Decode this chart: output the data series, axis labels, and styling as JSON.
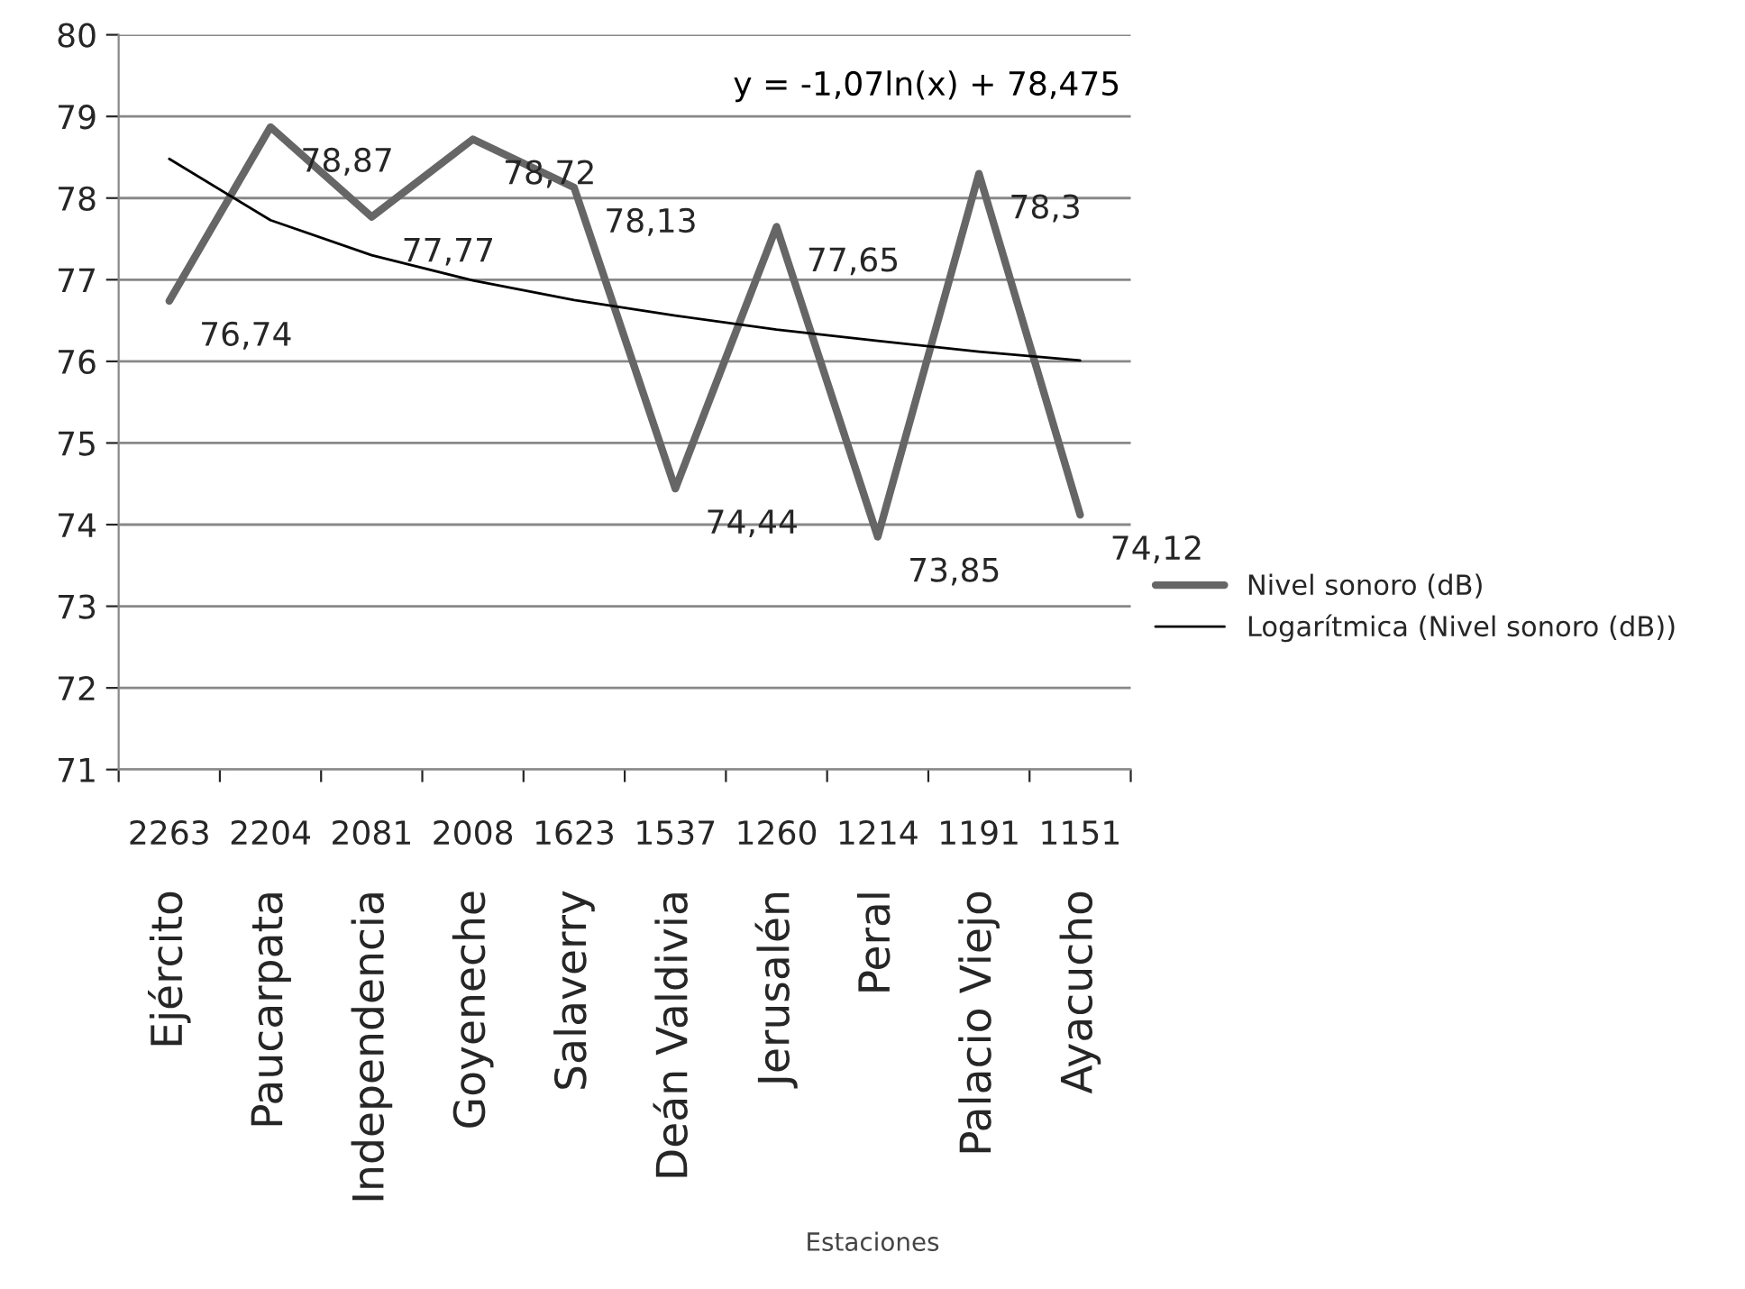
{
  "chart_data": {
    "type": "line",
    "categories": [
      "2263\nEjército",
      "2204\nPaucarpata",
      "2081\nIndependencia",
      "2008\nGoyeneche",
      "1623\nSalaverry",
      "1537\nDeán Valdivia",
      "1260\nJerusalén",
      "1214\nPeral",
      "1191\nPalacio Viejo",
      "1151\nAyacucho"
    ],
    "series": [
      {
        "name": "Nivel sonoro (dB)",
        "color": "#666666",
        "values": [
          76.74,
          78.87,
          77.77,
          78.72,
          78.13,
          74.44,
          77.65,
          73.85,
          78.3,
          74.12
        ],
        "value_labels": [
          "76,74",
          "78,87",
          "77,77",
          "78,72",
          "78,13",
          "74,44",
          "77,65",
          "73,85",
          "78,3",
          "74,12"
        ]
      },
      {
        "name": "Logarítmica (Nivel sonoro (dB))",
        "color": "#000000",
        "values": [
          78.48,
          77.73,
          77.3,
          76.99,
          76.75,
          76.56,
          76.39,
          76.25,
          76.12,
          76.01
        ]
      }
    ],
    "ylim": [
      71,
      80
    ],
    "yticks": [
      71,
      72,
      73,
      74,
      75,
      76,
      77,
      78,
      79,
      80
    ],
    "grid": "y",
    "legend": "right",
    "annotations": [
      "y = -1,07ln(x) + 78,475",
      "Estaciones"
    ]
  }
}
